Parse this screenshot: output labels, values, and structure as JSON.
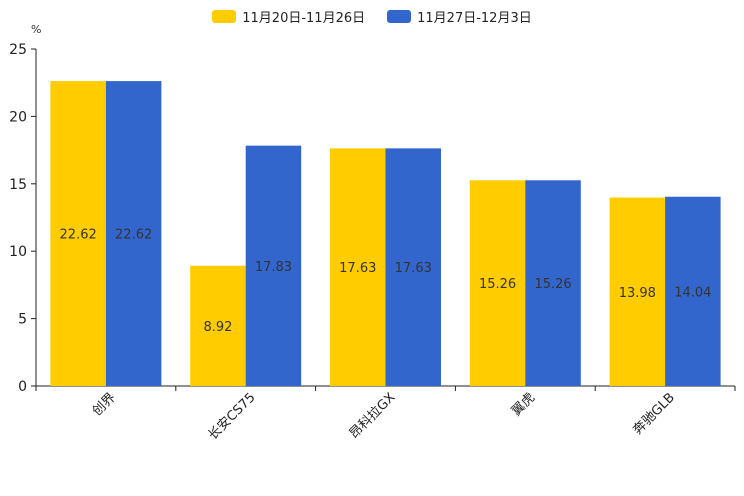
{
  "chart_data": {
    "type": "bar",
    "title": "",
    "xlabel": "",
    "ylabel": "%",
    "ylim": [
      0,
      25
    ],
    "yticks": [
      0,
      5,
      10,
      15,
      20,
      25
    ],
    "grid": false,
    "legend_position": "top-center",
    "categories": [
      "创界",
      "长安CS75",
      "昂科拉GX",
      "翼虎",
      "奔驰GLB"
    ],
    "series": [
      {
        "name": "11月20日-11月26日",
        "color": "#ffcc00",
        "values": [
          22.62,
          8.92,
          17.63,
          15.26,
          13.98
        ],
        "labels": [
          "22.62",
          "8.92",
          "17.63",
          "15.26",
          "13.98"
        ]
      },
      {
        "name": "11月27日-12月3日",
        "color": "#3366cc",
        "values": [
          22.62,
          17.83,
          17.63,
          15.26,
          14.04
        ],
        "labels": [
          "22.62",
          "17.83",
          "17.63",
          "15.26",
          "14.04"
        ]
      }
    ]
  }
}
